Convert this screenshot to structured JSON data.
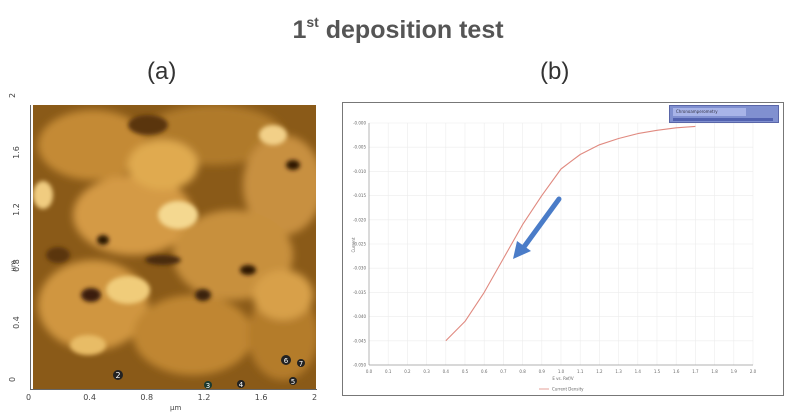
{
  "title": {
    "base": "1",
    "superscript": "st",
    "rest": " deposition test"
  },
  "panels": {
    "a": {
      "label": "(a)"
    },
    "b": {
      "label": "(b)"
    }
  },
  "afm": {
    "x_ticks": [
      "0",
      "0.4",
      "0.8",
      "1.2",
      "1.6",
      "2"
    ],
    "y_ticks": [
      "0",
      "0.4",
      "0.8",
      "1.2",
      "1.6",
      "2"
    ],
    "x_unit": "μm",
    "y_unit": "μm",
    "markers": [
      "2",
      "3",
      "4",
      "5",
      "6",
      "7"
    ]
  },
  "chart_data": {
    "type": "line",
    "title": "",
    "xlabel": "E vs. Ref/V",
    "ylabel": "Current",
    "x_ticks": [
      "0.0",
      "0.1",
      "0.2",
      "0.3",
      "0.4",
      "0.5",
      "0.6",
      "0.7",
      "0.8",
      "0.9",
      "1.0",
      "1.1",
      "1.2",
      "1.3",
      "1.4",
      "1.5",
      "1.6",
      "1.7",
      "1.8",
      "1.9",
      "2.0"
    ],
    "y_ticks": [
      "-0.000",
      "-0.005",
      "-0.010",
      "-0.015",
      "-0.020",
      "-0.025",
      "-0.030",
      "-0.035",
      "-0.040",
      "-0.045",
      "-0.050"
    ],
    "xlim": [
      0,
      2
    ],
    "ylim": [
      -0.05,
      0
    ],
    "legend_position": "bottom",
    "legend_inset": "Chronoamperometry",
    "series": [
      {
        "name": "Current Density",
        "color": "#e08a80",
        "x": [
          0.4,
          0.5,
          0.6,
          0.7,
          0.8,
          0.9,
          1.0,
          1.05,
          1.1,
          1.2,
          1.3,
          1.4,
          1.5,
          1.6,
          1.7
        ],
        "y": [
          -0.045,
          -0.041,
          -0.035,
          -0.028,
          -0.021,
          -0.015,
          -0.0095,
          -0.008,
          -0.0065,
          -0.0045,
          -0.0032,
          -0.0022,
          -0.0015,
          -0.001,
          -0.0007
        ]
      }
    ]
  },
  "colors": {
    "arrow": "#4a7cc8",
    "afm_dark": "#2a1505",
    "afm_light": "#f5d88a"
  }
}
